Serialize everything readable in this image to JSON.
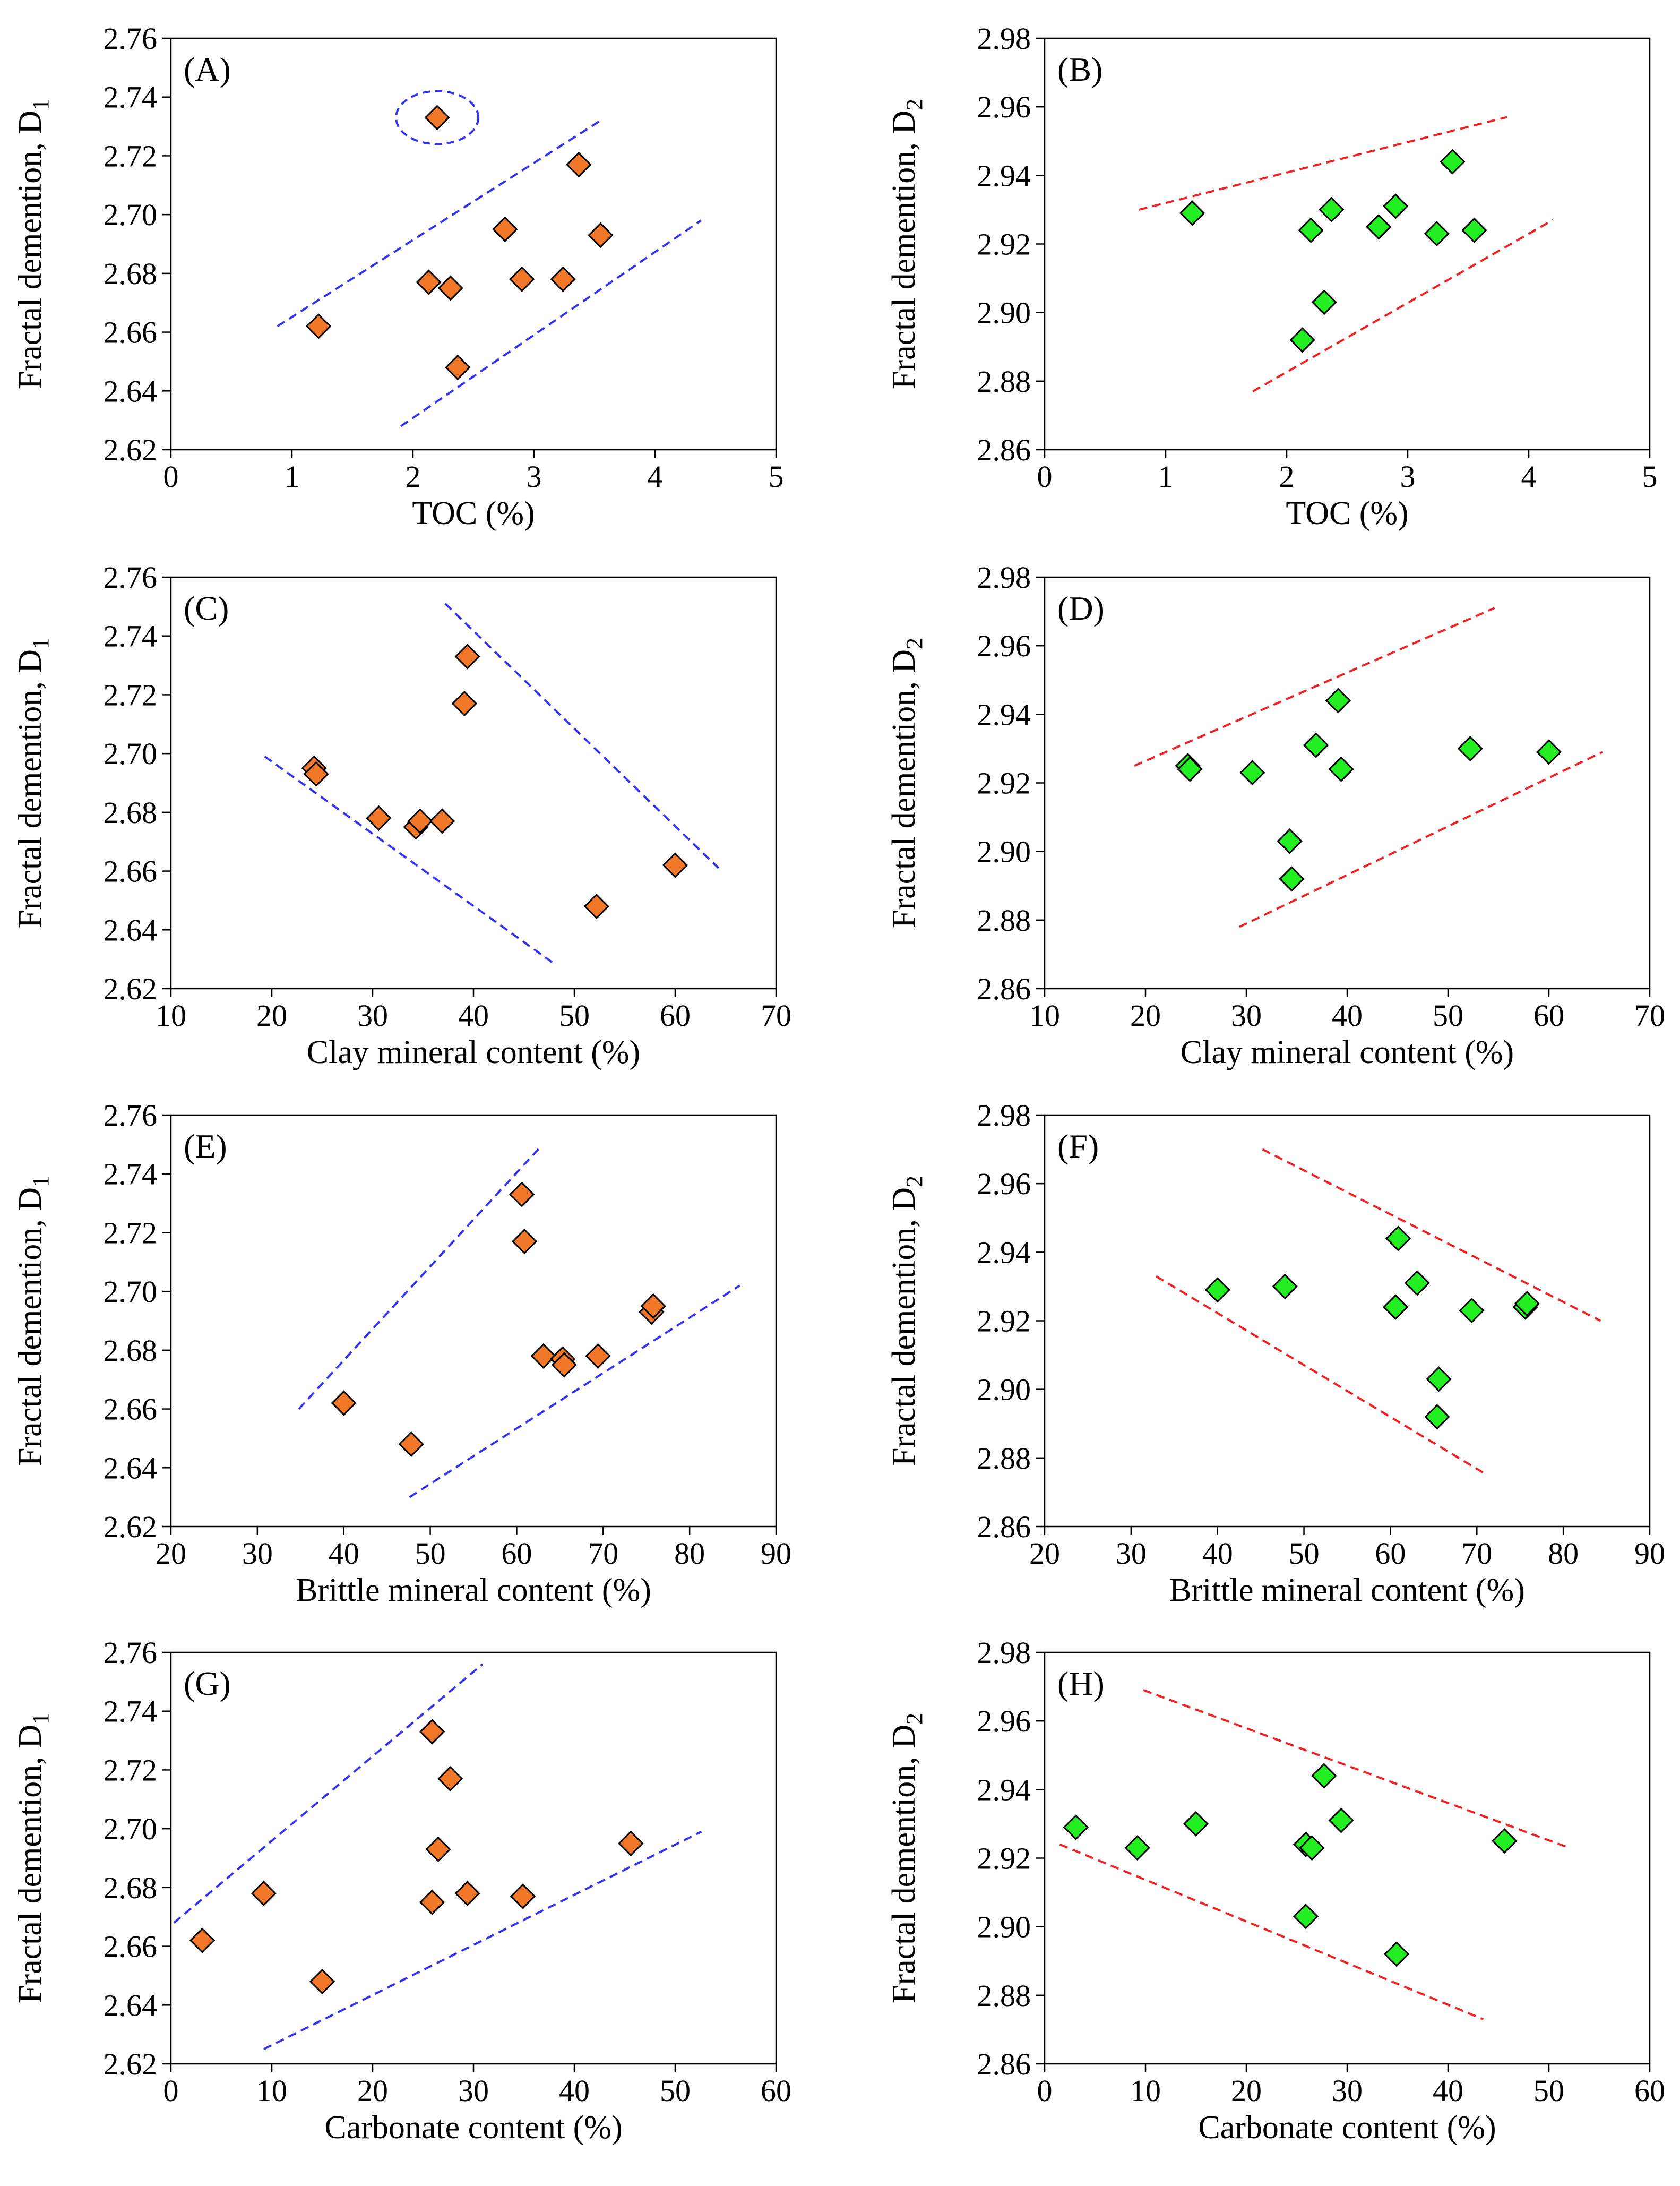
{
  "colors": {
    "d1_marker": "#F07828",
    "d2_marker": "#22EE22",
    "d1_trend": "#3333EE",
    "d2_trend": "#EE2222",
    "marker_stroke": "#000000"
  },
  "chart_data": [
    {
      "panel": "(A)",
      "type": "scatter",
      "xlabel": "TOC (%)",
      "ylabel": "Fractal demention, D",
      "ylabel_sub": "1",
      "xlim": [
        0,
        5
      ],
      "ylim": [
        2.62,
        2.76
      ],
      "xticks": [
        "0",
        "1",
        "2",
        "3",
        "4",
        "5"
      ],
      "yticks": [
        "2.62",
        "2.64",
        "2.66",
        "2.68",
        "2.70",
        "2.72",
        "2.74",
        "2.76"
      ],
      "marker": "d1",
      "points": [
        [
          1.22,
          2.662
        ],
        [
          2.13,
          2.677
        ],
        [
          2.2,
          2.733
        ],
        [
          2.31,
          2.675
        ],
        [
          2.37,
          2.648
        ],
        [
          2.76,
          2.695
        ],
        [
          2.9,
          2.678
        ],
        [
          3.24,
          2.678
        ],
        [
          3.37,
          2.717
        ],
        [
          3.55,
          2.693
        ]
      ],
      "trend_lines": [
        [
          [
            0.88,
            2.662
          ],
          [
            3.55,
            2.732
          ]
        ],
        [
          [
            1.9,
            2.628
          ],
          [
            4.38,
            2.698
          ]
        ]
      ],
      "ellipses": [
        {
          "cx": 2.2,
          "cy": 2.733,
          "rx": 0.34,
          "ry": 0.009
        }
      ]
    },
    {
      "panel": "(B)",
      "type": "scatter",
      "xlabel": "TOC (%)",
      "ylabel": "Fractal demention, D",
      "ylabel_sub": "2",
      "xlim": [
        0,
        5
      ],
      "ylim": [
        2.86,
        2.98
      ],
      "xticks": [
        "0",
        "1",
        "2",
        "3",
        "4",
        "5"
      ],
      "yticks": [
        "2.86",
        "2.88",
        "2.90",
        "2.92",
        "2.94",
        "2.96",
        "2.98"
      ],
      "marker": "d2",
      "points": [
        [
          1.22,
          2.929
        ],
        [
          2.13,
          2.892
        ],
        [
          2.2,
          2.924
        ],
        [
          2.31,
          2.903
        ],
        [
          2.37,
          2.93
        ],
        [
          2.76,
          2.925
        ],
        [
          2.9,
          2.931
        ],
        [
          3.24,
          2.923
        ],
        [
          3.37,
          2.944
        ],
        [
          3.55,
          2.924
        ]
      ],
      "trend_lines": [
        [
          [
            0.78,
            2.93
          ],
          [
            3.82,
            2.957
          ]
        ],
        [
          [
            1.72,
            2.877
          ],
          [
            4.2,
            2.927
          ]
        ]
      ],
      "ellipses": []
    },
    {
      "panel": "(C)",
      "type": "scatter",
      "xlabel": "Clay mineral content (%)",
      "ylabel": "Fractal demention, D",
      "ylabel_sub": "1",
      "xlim": [
        10,
        70
      ],
      "ylim": [
        2.62,
        2.76
      ],
      "xticks": [
        "10",
        "20",
        "30",
        "40",
        "50",
        "60",
        "70"
      ],
      "yticks": [
        "2.62",
        "2.64",
        "2.66",
        "2.68",
        "2.70",
        "2.72",
        "2.74",
        "2.76"
      ],
      "marker": "d1",
      "points": [
        [
          24.2,
          2.695
        ],
        [
          24.4,
          2.693
        ],
        [
          30.6,
          2.678
        ],
        [
          34.3,
          2.675
        ],
        [
          34.7,
          2.677
        ],
        [
          36.9,
          2.677
        ],
        [
          39.1,
          2.717
        ],
        [
          39.4,
          2.733
        ],
        [
          52.2,
          2.648
        ],
        [
          60.0,
          2.662
        ]
      ],
      "trend_lines": [
        [
          [
            19.3,
            2.699
          ],
          [
            48.2,
            2.628
          ]
        ],
        [
          [
            37.2,
            2.751
          ],
          [
            64.3,
            2.661
          ]
        ]
      ],
      "ellipses": []
    },
    {
      "panel": "(D)",
      "type": "scatter",
      "xlabel": "Clay mineral content (%)",
      "ylabel": "Fractal demention, D",
      "ylabel_sub": "2",
      "xlim": [
        10,
        70
      ],
      "ylim": [
        2.86,
        2.98
      ],
      "xticks": [
        "10",
        "20",
        "30",
        "40",
        "50",
        "60",
        "70"
      ],
      "yticks": [
        "2.86",
        "2.88",
        "2.90",
        "2.92",
        "2.94",
        "2.96",
        "2.98"
      ],
      "marker": "d2",
      "points": [
        [
          24.2,
          2.925
        ],
        [
          24.4,
          2.924
        ],
        [
          30.6,
          2.923
        ],
        [
          34.3,
          2.903
        ],
        [
          34.5,
          2.892
        ],
        [
          36.9,
          2.931
        ],
        [
          39.1,
          2.944
        ],
        [
          39.4,
          2.924
        ],
        [
          52.2,
          2.93
        ],
        [
          60.0,
          2.929
        ]
      ],
      "trend_lines": [
        [
          [
            18.9,
            2.925
          ],
          [
            54.6,
            2.971
          ]
        ],
        [
          [
            29.3,
            2.878
          ],
          [
            65.3,
            2.929
          ]
        ]
      ],
      "ellipses": []
    },
    {
      "panel": "(E)",
      "type": "scatter",
      "xlabel": "Brittle mineral content (%)",
      "ylabel": "Fractal demention, D",
      "ylabel_sub": "1",
      "xlim": [
        20,
        90
      ],
      "ylim": [
        2.62,
        2.76
      ],
      "xticks": [
        "20",
        "30",
        "40",
        "50",
        "60",
        "70",
        "80",
        "90"
      ],
      "yticks": [
        "2.62",
        "2.64",
        "2.66",
        "2.68",
        "2.70",
        "2.72",
        "2.74",
        "2.76"
      ],
      "marker": "d1",
      "points": [
        [
          40.0,
          2.662
        ],
        [
          47.8,
          2.648
        ],
        [
          60.6,
          2.733
        ],
        [
          60.9,
          2.717
        ],
        [
          63.1,
          2.678
        ],
        [
          65.3,
          2.677
        ],
        [
          65.5,
          2.675
        ],
        [
          69.4,
          2.678
        ],
        [
          75.6,
          2.693
        ],
        [
          75.8,
          2.695
        ]
      ],
      "trend_lines": [
        [
          [
            34.8,
            2.66
          ],
          [
            62.7,
            2.749
          ]
        ],
        [
          [
            47.6,
            2.63
          ],
          [
            85.8,
            2.702
          ]
        ]
      ],
      "ellipses": []
    },
    {
      "panel": "(F)",
      "type": "scatter",
      "xlabel": "Brittle mineral content (%)",
      "ylabel": "Fractal demention, D",
      "ylabel_sub": "2",
      "xlim": [
        20,
        90
      ],
      "ylim": [
        2.86,
        2.98
      ],
      "xticks": [
        "20",
        "30",
        "40",
        "50",
        "60",
        "70",
        "80",
        "90"
      ],
      "yticks": [
        "2.86",
        "2.88",
        "2.90",
        "2.92",
        "2.94",
        "2.96",
        "2.98"
      ],
      "marker": "d2",
      "points": [
        [
          40.0,
          2.929
        ],
        [
          47.8,
          2.93
        ],
        [
          60.6,
          2.924
        ],
        [
          60.9,
          2.944
        ],
        [
          63.1,
          2.931
        ],
        [
          65.4,
          2.892
        ],
        [
          65.6,
          2.903
        ],
        [
          69.4,
          2.923
        ],
        [
          75.6,
          2.924
        ],
        [
          75.8,
          2.925
        ]
      ],
      "trend_lines": [
        [
          [
            45.2,
            2.97
          ],
          [
            84.3,
            2.92
          ]
        ],
        [
          [
            32.9,
            2.933
          ],
          [
            71.2,
            2.875
          ]
        ]
      ],
      "ellipses": []
    },
    {
      "panel": "(G)",
      "type": "scatter",
      "xlabel": "Carbonate content (%)",
      "ylabel": "Fractal demention, D",
      "ylabel_sub": "1",
      "xlim": [
        0,
        60
      ],
      "ylim": [
        2.62,
        2.76
      ],
      "xticks": [
        "0",
        "10",
        "20",
        "30",
        "40",
        "50",
        "60"
      ],
      "yticks": [
        "2.62",
        "2.64",
        "2.66",
        "2.68",
        "2.70",
        "2.72",
        "2.74",
        "2.76"
      ],
      "marker": "d1",
      "points": [
        [
          3.1,
          2.662
        ],
        [
          9.2,
          2.678
        ],
        [
          15.0,
          2.648
        ],
        [
          25.9,
          2.675
        ],
        [
          25.9,
          2.733
        ],
        [
          26.5,
          2.693
        ],
        [
          27.7,
          2.717
        ],
        [
          29.4,
          2.678
        ],
        [
          34.9,
          2.677
        ],
        [
          45.6,
          2.695
        ]
      ],
      "trend_lines": [
        [
          [
            0.3,
            2.668
          ],
          [
            30.9,
            2.756
          ]
        ],
        [
          [
            9.2,
            2.625
          ],
          [
            52.6,
            2.699
          ]
        ]
      ],
      "ellipses": []
    },
    {
      "panel": "(H)",
      "type": "scatter",
      "xlabel": "Carbonate content (%)",
      "ylabel": "Fractal demention, D",
      "ylabel_sub": "2",
      "xlim": [
        0,
        60
      ],
      "ylim": [
        2.86,
        2.98
      ],
      "xticks": [
        "0",
        "10",
        "20",
        "30",
        "40",
        "50",
        "60"
      ],
      "yticks": [
        "2.86",
        "2.88",
        "2.90",
        "2.92",
        "2.94",
        "2.96",
        "2.98"
      ],
      "marker": "d2",
      "points": [
        [
          3.1,
          2.929
        ],
        [
          9.2,
          2.923
        ],
        [
          15.0,
          2.93
        ],
        [
          25.9,
          2.903
        ],
        [
          25.9,
          2.924
        ],
        [
          26.5,
          2.923
        ],
        [
          27.7,
          2.944
        ],
        [
          29.4,
          2.931
        ],
        [
          34.9,
          2.892
        ],
        [
          45.6,
          2.925
        ]
      ],
      "trend_lines": [
        [
          [
            9.8,
            2.969
          ],
          [
            52.0,
            2.923
          ]
        ],
        [
          [
            1.5,
            2.924
          ],
          [
            43.5,
            2.873
          ]
        ]
      ],
      "ellipses": []
    }
  ]
}
